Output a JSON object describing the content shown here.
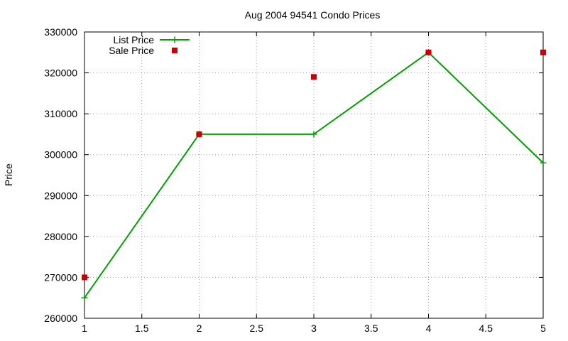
{
  "chart_data": {
    "type": "line",
    "title": "Aug 2004 94541 Condo Prices",
    "xlabel": "",
    "ylabel": "Price",
    "xlim": [
      1,
      5
    ],
    "ylim": [
      260000,
      330000
    ],
    "x_ticks": [
      "1",
      "1.5",
      "2",
      "2.5",
      "3",
      "3.5",
      "4",
      "4.5",
      "5"
    ],
    "y_ticks": [
      "260000",
      "270000",
      "280000",
      "290000",
      "300000",
      "310000",
      "320000",
      "330000"
    ],
    "grid": true,
    "legend_position": "top-left",
    "series": [
      {
        "name": "List Price",
        "style": "lines+points",
        "marker": "plus",
        "color": "#00a000",
        "x": [
          1,
          2,
          3,
          4,
          5
        ],
        "y": [
          265000,
          305000,
          305000,
          325000,
          298000
        ]
      },
      {
        "name": "Sale Price",
        "style": "points",
        "marker": "square",
        "color": "#cc0000",
        "x": [
          1,
          2,
          3,
          4,
          5
        ],
        "y": [
          270000,
          305000,
          319000,
          325000,
          325000
        ]
      }
    ]
  }
}
